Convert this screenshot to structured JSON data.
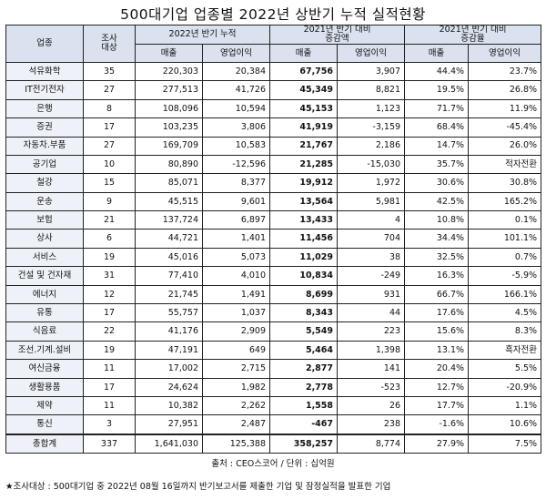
{
  "title": "500대기업 업종별 2022년 상반기 누적 실적현황",
  "headers": {
    "industry": "업종",
    "survey_count": "조사\n대상",
    "group_2022": "2022년 반기 누적",
    "group_diff": "2021년 반기 대비\n증감액",
    "group_rate": "2021년 반기 대비\n증감율",
    "sales": "매출",
    "op_profit": "영업이익"
  },
  "rows": [
    {
      "name": "석유화학",
      "count": "35",
      "sales": "220,303",
      "op": "20,384",
      "d_sales": "67,756",
      "d_op": "3,907",
      "r_sales": "44.4%",
      "r_op": "23.7%"
    },
    {
      "name": "IT전기전자",
      "count": "27",
      "sales": "277,513",
      "op": "41,726",
      "d_sales": "45,349",
      "d_op": "8,821",
      "r_sales": "19.5%",
      "r_op": "26.8%"
    },
    {
      "name": "은행",
      "count": "8",
      "sales": "108,096",
      "op": "10,594",
      "d_sales": "45,153",
      "d_op": "1,123",
      "r_sales": "71.7%",
      "r_op": "11.9%"
    },
    {
      "name": "증권",
      "count": "17",
      "sales": "103,235",
      "op": "3,806",
      "d_sales": "41,919",
      "d_op": "-3,159",
      "r_sales": "68.4%",
      "r_op": "-45.4%"
    },
    {
      "name": "자동차.부품",
      "count": "27",
      "sales": "169,709",
      "op": "10,583",
      "d_sales": "21,767",
      "d_op": "2,186",
      "r_sales": "14.7%",
      "r_op": "26.0%"
    },
    {
      "name": "공기업",
      "count": "10",
      "sales": "80,890",
      "op": "-12,596",
      "d_sales": "21,285",
      "d_op": "-15,030",
      "r_sales": "35.7%",
      "r_op": "적자전환"
    },
    {
      "name": "철강",
      "count": "15",
      "sales": "85,071",
      "op": "8,377",
      "d_sales": "19,912",
      "d_op": "1,972",
      "r_sales": "30.6%",
      "r_op": "30.8%"
    },
    {
      "name": "운송",
      "count": "9",
      "sales": "45,515",
      "op": "9,601",
      "d_sales": "13,564",
      "d_op": "5,981",
      "r_sales": "42.5%",
      "r_op": "165.2%"
    },
    {
      "name": "보험",
      "count": "21",
      "sales": "137,724",
      "op": "6,897",
      "d_sales": "13,433",
      "d_op": "4",
      "r_sales": "10.8%",
      "r_op": "0.1%"
    },
    {
      "name": "상사",
      "count": "6",
      "sales": "44,721",
      "op": "1,401",
      "d_sales": "11,456",
      "d_op": "704",
      "r_sales": "34.4%",
      "r_op": "101.1%"
    },
    {
      "name": "서비스",
      "count": "19",
      "sales": "45,016",
      "op": "5,073",
      "d_sales": "11,029",
      "d_op": "38",
      "r_sales": "32.5%",
      "r_op": "0.7%"
    },
    {
      "name": "건설 및 건자재",
      "count": "31",
      "sales": "77,410",
      "op": "4,010",
      "d_sales": "10,834",
      "d_op": "-249",
      "r_sales": "16.3%",
      "r_op": "-5.9%"
    },
    {
      "name": "에너지",
      "count": "12",
      "sales": "21,745",
      "op": "1,491",
      "d_sales": "8,699",
      "d_op": "931",
      "r_sales": "66.7%",
      "r_op": "166.1%"
    },
    {
      "name": "유통",
      "count": "17",
      "sales": "55,757",
      "op": "1,037",
      "d_sales": "8,343",
      "d_op": "44",
      "r_sales": "17.6%",
      "r_op": "4.5%"
    },
    {
      "name": "식음료",
      "count": "22",
      "sales": "41,176",
      "op": "2,909",
      "d_sales": "5,549",
      "d_op": "223",
      "r_sales": "15.6%",
      "r_op": "8.3%"
    },
    {
      "name": "조선.기계.설비",
      "count": "19",
      "sales": "47,191",
      "op": "649",
      "d_sales": "5,464",
      "d_op": "1,398",
      "r_sales": "13.1%",
      "r_op": "흑자전환"
    },
    {
      "name": "여신금융",
      "count": "11",
      "sales": "17,002",
      "op": "2,715",
      "d_sales": "2,877",
      "d_op": "141",
      "r_sales": "20.4%",
      "r_op": "5.5%"
    },
    {
      "name": "생활용품",
      "count": "17",
      "sales": "24,624",
      "op": "1,982",
      "d_sales": "2,778",
      "d_op": "-523",
      "r_sales": "12.7%",
      "r_op": "-20.9%"
    },
    {
      "name": "제약",
      "count": "11",
      "sales": "10,382",
      "op": "2,262",
      "d_sales": "1,558",
      "d_op": "26",
      "r_sales": "17.7%",
      "r_op": "1.1%"
    },
    {
      "name": "통신",
      "count": "3",
      "sales": "27,951",
      "op": "2,487",
      "d_sales": "-467",
      "d_op": "238",
      "r_sales": "-1.6%",
      "r_op": "10.6%"
    }
  ],
  "total": {
    "name": "총합계",
    "count": "337",
    "sales": "1,641,030",
    "op": "125,388",
    "d_sales": "358,257",
    "d_op": "8,774",
    "r_sales": "27.9%",
    "r_op": "7.5%"
  },
  "source": "출처 : CEO스코어 / 단위 : 십억원",
  "note": "★조사대상 : 500대기업 중 2022년 08월 16일까지 반기보고서를 제출한 기업 및 잠정실적을 발표한 기업"
}
